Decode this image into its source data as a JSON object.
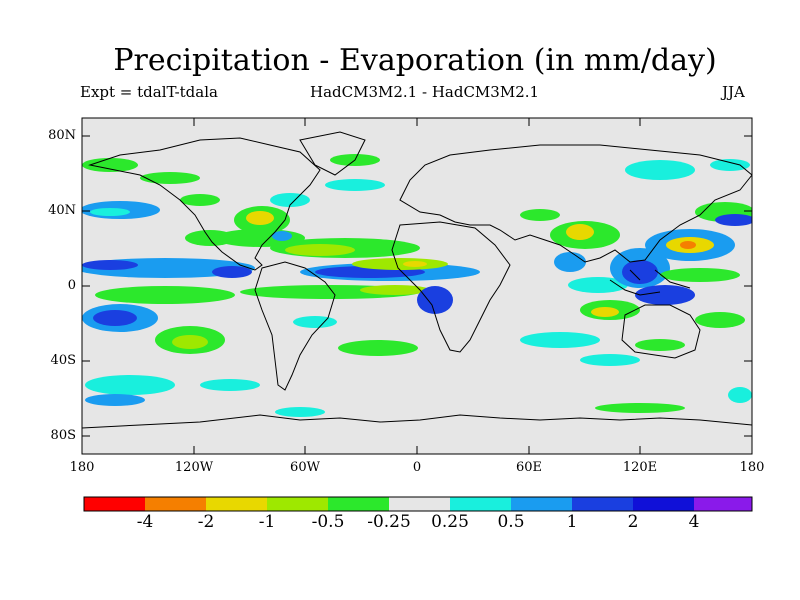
{
  "header": {
    "title": "Precipitation - Evaporation (in mm/day)",
    "experiment": "Expt = tdalT-tdala",
    "models": "HadCM3M2.1 - HadCM3M2.1",
    "season": "JJA"
  },
  "axes": {
    "lat_labels": [
      "80N",
      "40N",
      "0",
      "40S",
      "80S"
    ],
    "lon_labels": [
      "180",
      "120W",
      "60W",
      "0",
      "60E",
      "120E",
      "180"
    ]
  },
  "colorbar": {
    "colors": [
      "#ff0000",
      "#f57f00",
      "#e8d800",
      "#9ee800",
      "#2ce82c",
      "#e6e6e6",
      "#19efdd",
      "#1a9cf0",
      "#1a3fe0",
      "#1010d8",
      "#8a1aea"
    ],
    "labels": [
      "-4",
      "-2",
      "-1",
      "-0.5",
      "-0.25",
      "0.25",
      "0.5",
      "1",
      "2",
      "4"
    ]
  },
  "colors": {
    "background": "#e6e6e6",
    "coastline": "#000000"
  }
}
